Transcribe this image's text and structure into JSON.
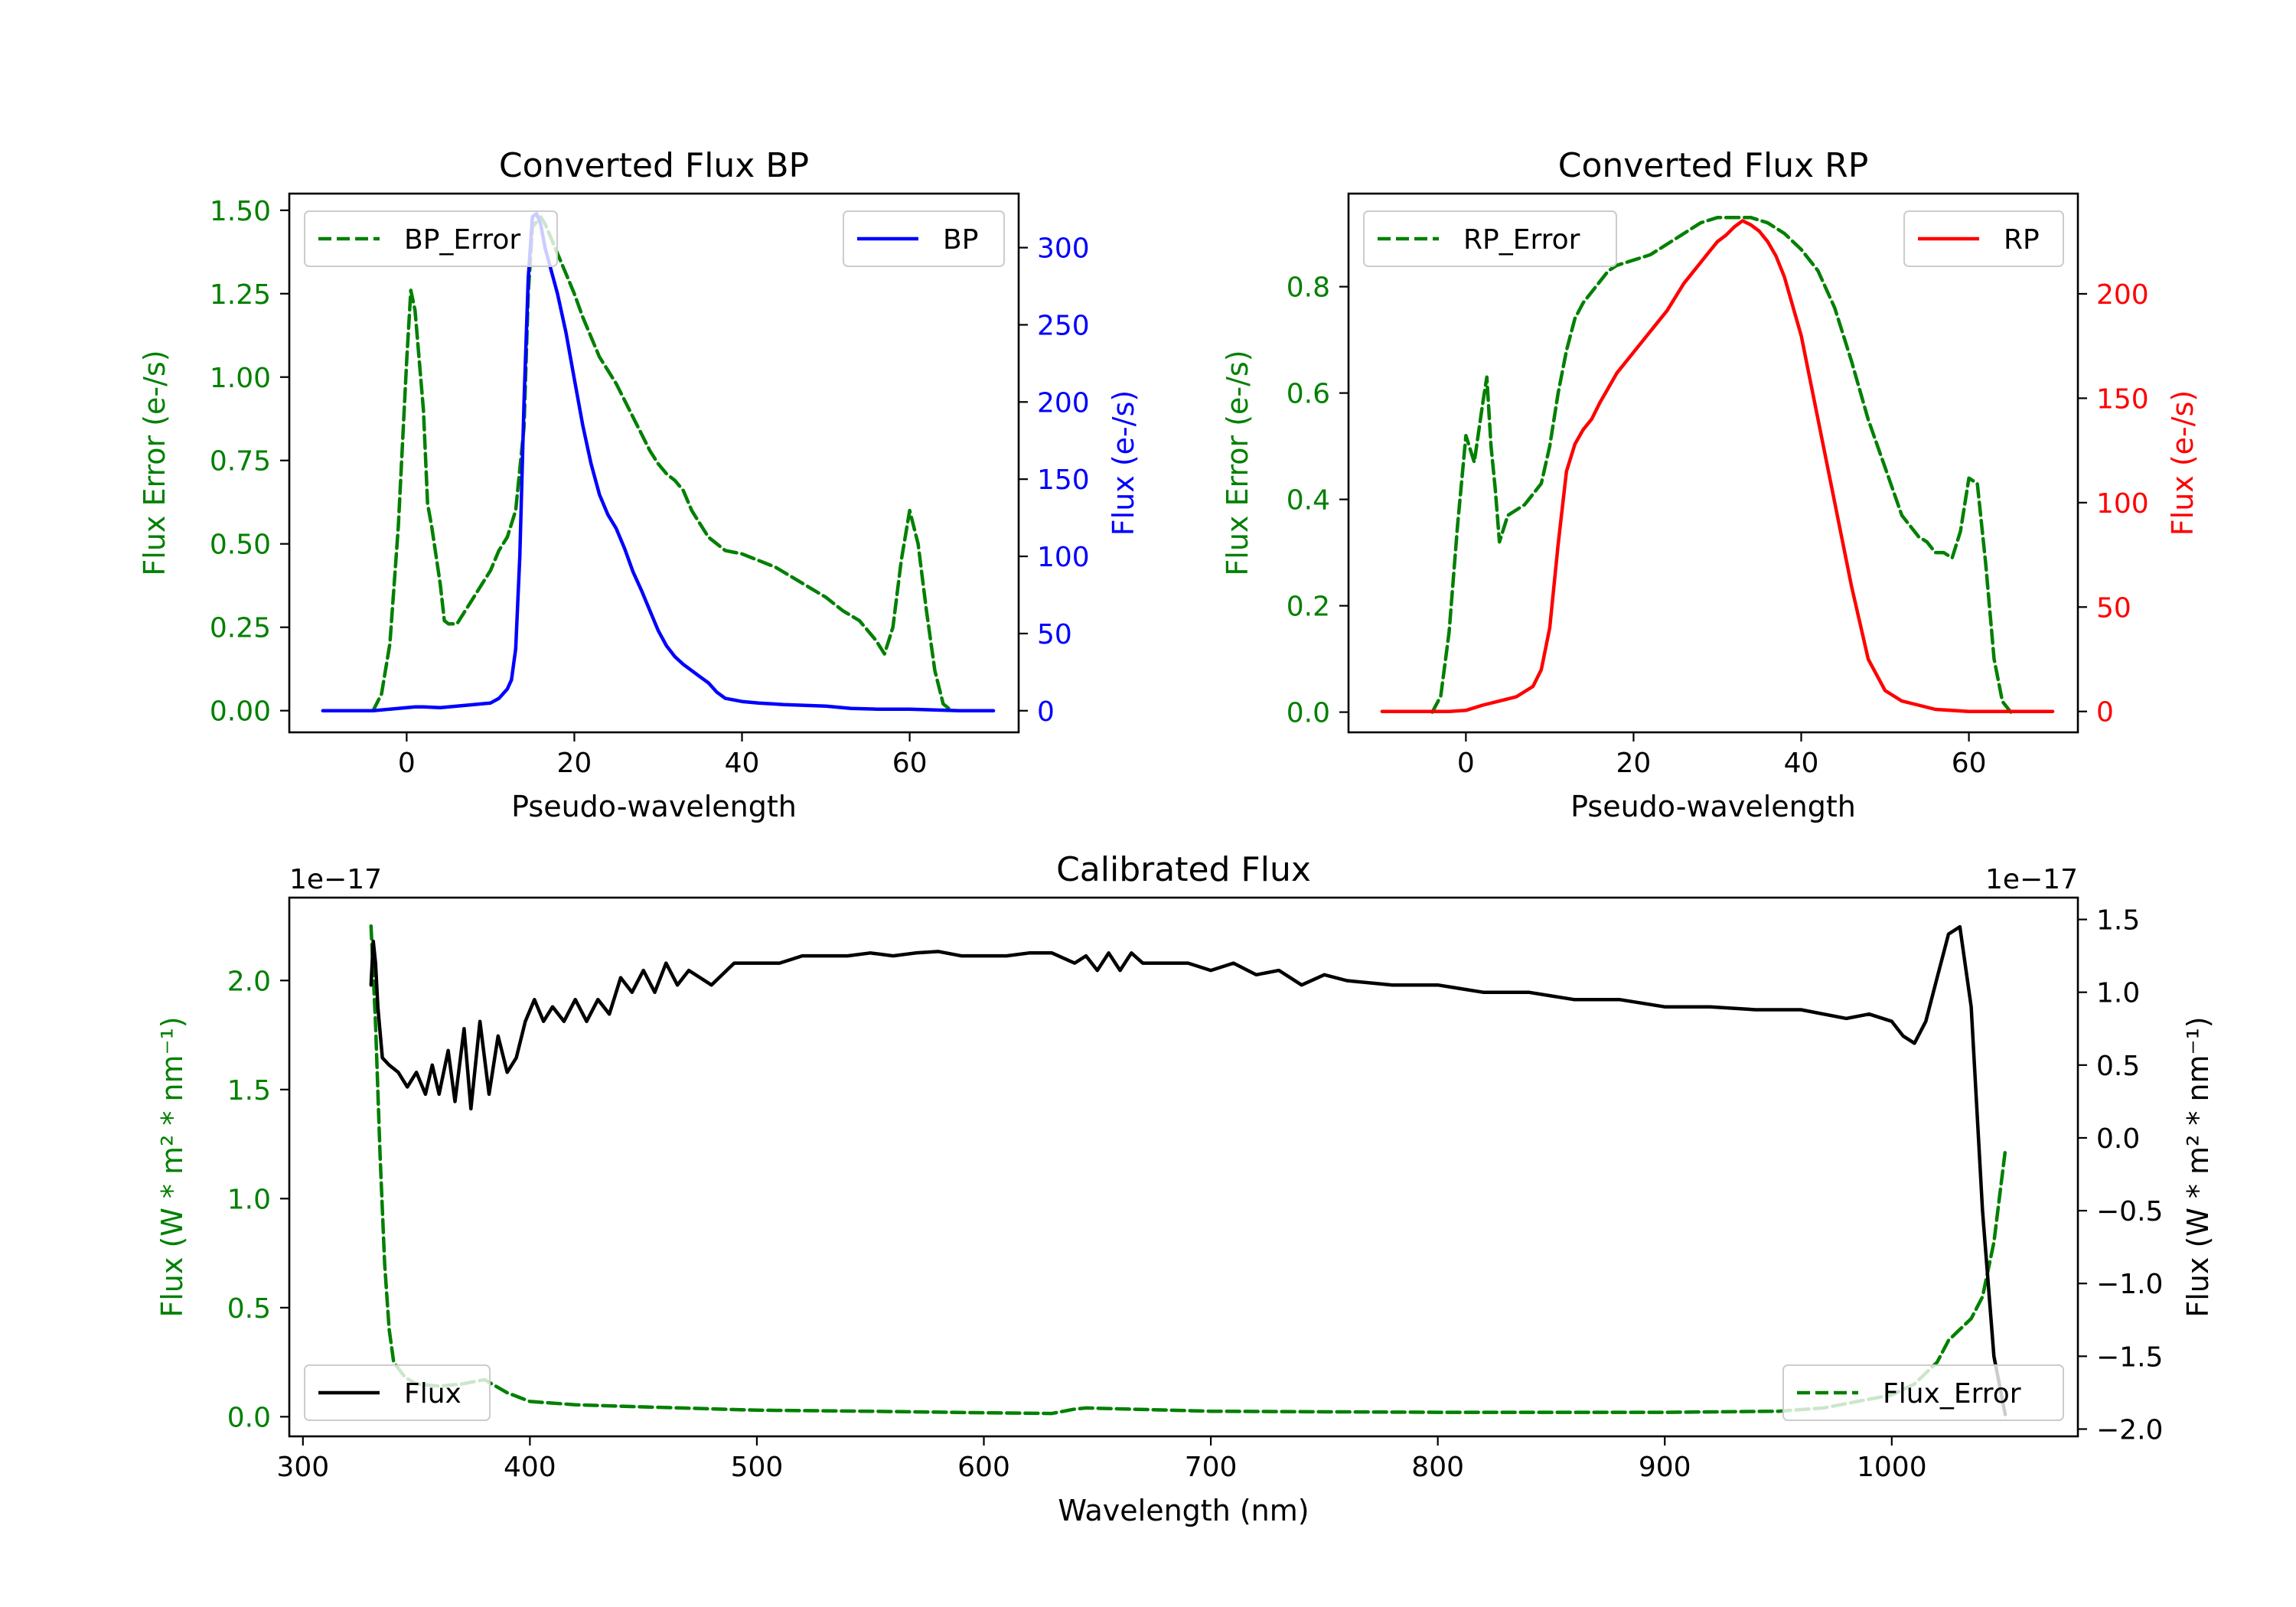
{
  "chart_data": [
    {
      "type": "line",
      "title": "Converted Flux BP",
      "xlabel": "Pseudo-wavelength",
      "ylabel_left": "Flux Error (e-/s)",
      "ylabel_right": "Flux (e-/s)",
      "xlim": [
        -14,
        73
      ],
      "ylim_left": [
        -0.065,
        1.55
      ],
      "ylim_right": [
        -14,
        335
      ],
      "xticks": [
        0,
        20,
        40,
        60
      ],
      "yticks_left": [
        "0.00",
        "0.25",
        "0.50",
        "0.75",
        "1.00",
        "1.25",
        "1.50"
      ],
      "yticks_right": [
        "0",
        "50",
        "100",
        "150",
        "200",
        "250",
        "300"
      ],
      "legend_left": "BP_Error",
      "legend_right": "BP",
      "series": [
        {
          "name": "BP_Error",
          "axis": "left",
          "color": "#008000",
          "dash": true,
          "x": [
            -4,
            -3,
            -2,
            -1,
            0,
            0.5,
            1,
            2,
            2.5,
            3,
            4,
            4.5,
            5,
            6,
            7,
            8,
            9,
            10,
            11,
            12,
            13,
            14,
            14.5,
            15,
            16,
            16.5,
            17,
            18,
            19,
            20,
            21,
            22,
            23,
            24,
            25,
            26,
            27,
            28,
            29,
            30,
            31,
            32,
            33,
            34,
            35,
            36,
            37,
            38,
            40,
            42,
            44,
            46,
            48,
            50,
            52,
            54,
            55,
            56,
            57,
            58,
            59,
            60,
            61,
            62,
            63,
            64,
            65
          ],
          "values": [
            0.0,
            0.05,
            0.2,
            0.55,
            1.05,
            1.26,
            1.2,
            0.9,
            0.62,
            0.55,
            0.38,
            0.27,
            0.26,
            0.26,
            0.3,
            0.34,
            0.38,
            0.42,
            0.48,
            0.52,
            0.6,
            0.85,
            1.25,
            1.45,
            1.48,
            1.46,
            1.43,
            1.37,
            1.31,
            1.25,
            1.18,
            1.12,
            1.06,
            1.02,
            0.98,
            0.93,
            0.88,
            0.83,
            0.78,
            0.74,
            0.71,
            0.69,
            0.66,
            0.6,
            0.56,
            0.52,
            0.5,
            0.48,
            0.47,
            0.45,
            0.43,
            0.4,
            0.37,
            0.34,
            0.3,
            0.27,
            0.24,
            0.21,
            0.17,
            0.25,
            0.45,
            0.6,
            0.5,
            0.3,
            0.12,
            0.02,
            0.0
          ]
        },
        {
          "name": "BP",
          "axis": "right",
          "color": "#0000ff",
          "dash": false,
          "x": [
            -10,
            -4,
            -2,
            0,
            1,
            2,
            4,
            6,
            8,
            10,
            11,
            12,
            12.5,
            13,
            13.5,
            14,
            14.5,
            15,
            15.5,
            16,
            16.5,
            17,
            18,
            19,
            20,
            21,
            22,
            23,
            24,
            25,
            26,
            27,
            28,
            29,
            30,
            31,
            32,
            33,
            34,
            35,
            36,
            37,
            38,
            40,
            42,
            45,
            50,
            53,
            56,
            60,
            63,
            66,
            70
          ],
          "values": [
            0,
            0,
            1,
            2,
            2.5,
            2.5,
            2,
            3,
            4,
            5,
            8,
            14,
            20,
            40,
            100,
            200,
            280,
            320,
            322,
            315,
            300,
            290,
            270,
            245,
            215,
            185,
            160,
            140,
            127,
            118,
            105,
            90,
            78,
            65,
            52,
            42,
            35,
            30,
            26,
            22,
            18,
            12,
            8,
            6,
            5,
            4,
            3,
            1.5,
            1,
            1,
            0.5,
            0,
            0
          ]
        }
      ]
    },
    {
      "type": "line",
      "title": "Converted Flux RP",
      "xlabel": "Pseudo-wavelength",
      "ylabel_left": "Flux Error (e-/s)",
      "ylabel_right": "Flux (e-/s)",
      "xlim": [
        -14,
        73
      ],
      "ylim_left": [
        -0.038,
        0.975
      ],
      "ylim_right": [
        -10,
        248
      ],
      "xticks": [
        0,
        20,
        40,
        60
      ],
      "yticks_left": [
        "0.0",
        "0.2",
        "0.4",
        "0.6",
        "0.8"
      ],
      "yticks_right": [
        "0",
        "50",
        "100",
        "150",
        "200"
      ],
      "legend_left": "RP_Error",
      "legend_right": "RP",
      "series": [
        {
          "name": "RP_Error",
          "axis": "left",
          "color": "#008000",
          "dash": true,
          "x": [
            -4,
            -3,
            -2,
            -1,
            0,
            1,
            2,
            2.5,
            3,
            3.5,
            4,
            5,
            6,
            7,
            8,
            9,
            10,
            11,
            12,
            13,
            14,
            15,
            16,
            17,
            18,
            20,
            22,
            24,
            26,
            28,
            30,
            32,
            34,
            36,
            38,
            40,
            42,
            44,
            46,
            48,
            50,
            52,
            54,
            55,
            56,
            57,
            58,
            59,
            60,
            61,
            62,
            63,
            64,
            65
          ],
          "values": [
            0.0,
            0.03,
            0.15,
            0.35,
            0.52,
            0.47,
            0.58,
            0.63,
            0.5,
            0.42,
            0.32,
            0.37,
            0.38,
            0.39,
            0.41,
            0.43,
            0.5,
            0.6,
            0.68,
            0.74,
            0.77,
            0.79,
            0.81,
            0.83,
            0.84,
            0.85,
            0.86,
            0.88,
            0.9,
            0.92,
            0.93,
            0.93,
            0.93,
            0.92,
            0.9,
            0.87,
            0.83,
            0.76,
            0.66,
            0.55,
            0.46,
            0.37,
            0.33,
            0.32,
            0.3,
            0.3,
            0.29,
            0.34,
            0.44,
            0.43,
            0.28,
            0.1,
            0.02,
            0.0
          ]
        },
        {
          "name": "RP",
          "axis": "right",
          "color": "#ff0000",
          "dash": false,
          "x": [
            -10,
            -2,
            0,
            2,
            4,
            6,
            8,
            9,
            10,
            11,
            12,
            13,
            14,
            15,
            16,
            17,
            18,
            20,
            22,
            24,
            26,
            28,
            29,
            30,
            31,
            32,
            33,
            34,
            35,
            36,
            37,
            38,
            40,
            42,
            44,
            46,
            48,
            50,
            52,
            54,
            56,
            60,
            65,
            70
          ],
          "values": [
            0,
            0,
            0.5,
            3,
            5,
            7,
            12,
            20,
            40,
            80,
            115,
            128,
            135,
            140,
            148,
            155,
            162,
            172,
            182,
            192,
            205,
            215,
            220,
            225,
            228,
            232,
            235,
            233,
            230,
            225,
            218,
            208,
            180,
            140,
            100,
            60,
            25,
            10,
            5,
            3,
            1,
            0,
            0,
            0
          ]
        }
      ]
    },
    {
      "type": "line",
      "title": "Calibrated Flux",
      "xlabel": "Wavelength (nm)",
      "ylabel_left": "Flux (W * m² * nm⁻¹)",
      "ylabel_right": "Flux (W * m² * nm⁻¹)",
      "offset_left": "1e−17",
      "offset_right": "1e−17",
      "xlim": [
        294,
        1082
      ],
      "ylim_left": [
        -0.09,
        2.38
      ],
      "ylim_right": [
        -2.05,
        1.65
      ],
      "xticks": [
        300,
        400,
        500,
        600,
        700,
        800,
        900,
        1000
      ],
      "yticks_left": [
        "0.0",
        "0.5",
        "1.0",
        "1.5",
        "2.0"
      ],
      "yticks_right": [
        "−2.0",
        "−1.5",
        "−1.0",
        "−0.5",
        "0.0",
        "0.5",
        "1.0",
        "1.5"
      ],
      "legend_left": "Flux",
      "legend_right": "Flux_Error",
      "series": [
        {
          "name": "Flux_Error",
          "axis": "left",
          "color": "#008000",
          "dash": true,
          "x": [
            330,
            332,
            334,
            336,
            338,
            340,
            345,
            350,
            360,
            370,
            380,
            390,
            400,
            420,
            450,
            500,
            550,
            600,
            630,
            640,
            645,
            700,
            800,
            900,
            950,
            970,
            980,
            1000,
            1010,
            1020,
            1025,
            1030,
            1035,
            1040,
            1045,
            1050
          ],
          "values": [
            2.25,
            1.8,
            1.2,
            0.7,
            0.4,
            0.25,
            0.18,
            0.15,
            0.14,
            0.15,
            0.17,
            0.11,
            0.07,
            0.055,
            0.045,
            0.03,
            0.025,
            0.018,
            0.015,
            0.035,
            0.04,
            0.025,
            0.02,
            0.02,
            0.025,
            0.04,
            0.06,
            0.1,
            0.15,
            0.25,
            0.35,
            0.4,
            0.45,
            0.55,
            0.8,
            1.22
          ]
        },
        {
          "name": "Flux",
          "axis": "right",
          "color": "#000000",
          "dash": false,
          "x": [
            330,
            331,
            332,
            333,
            335,
            338,
            342,
            346,
            350,
            354,
            357,
            360,
            364,
            367,
            371,
            374,
            378,
            382,
            386,
            390,
            394,
            398,
            402,
            406,
            410,
            415,
            420,
            425,
            430,
            435,
            440,
            445,
            450,
            455,
            460,
            465,
            470,
            480,
            490,
            500,
            510,
            520,
            530,
            540,
            550,
            560,
            570,
            580,
            590,
            600,
            610,
            620,
            630,
            640,
            645,
            650,
            655,
            660,
            665,
            670,
            680,
            690,
            700,
            710,
            720,
            730,
            740,
            750,
            760,
            780,
            800,
            820,
            840,
            860,
            880,
            900,
            920,
            940,
            960,
            980,
            990,
            1000,
            1005,
            1010,
            1015,
            1020,
            1025,
            1030,
            1035,
            1040,
            1045,
            1050
          ],
          "values": [
            1.05,
            1.35,
            1.2,
            0.9,
            0.55,
            0.5,
            0.45,
            0.35,
            0.45,
            0.3,
            0.5,
            0.3,
            0.6,
            0.25,
            0.75,
            0.2,
            0.8,
            0.3,
            0.7,
            0.45,
            0.55,
            0.8,
            0.95,
            0.8,
            0.9,
            0.8,
            0.95,
            0.8,
            0.95,
            0.85,
            1.1,
            1.0,
            1.15,
            1.0,
            1.2,
            1.05,
            1.15,
            1.05,
            1.2,
            1.2,
            1.2,
            1.25,
            1.25,
            1.25,
            1.27,
            1.25,
            1.27,
            1.28,
            1.25,
            1.25,
            1.25,
            1.27,
            1.27,
            1.2,
            1.25,
            1.15,
            1.27,
            1.15,
            1.27,
            1.2,
            1.2,
            1.2,
            1.15,
            1.2,
            1.12,
            1.15,
            1.05,
            1.12,
            1.08,
            1.05,
            1.05,
            1.0,
            1.0,
            0.95,
            0.95,
            0.9,
            0.9,
            0.88,
            0.88,
            0.82,
            0.85,
            0.8,
            0.7,
            0.65,
            0.8,
            1.1,
            1.4,
            1.45,
            0.9,
            -0.5,
            -1.5,
            -1.9
          ]
        }
      ]
    }
  ]
}
